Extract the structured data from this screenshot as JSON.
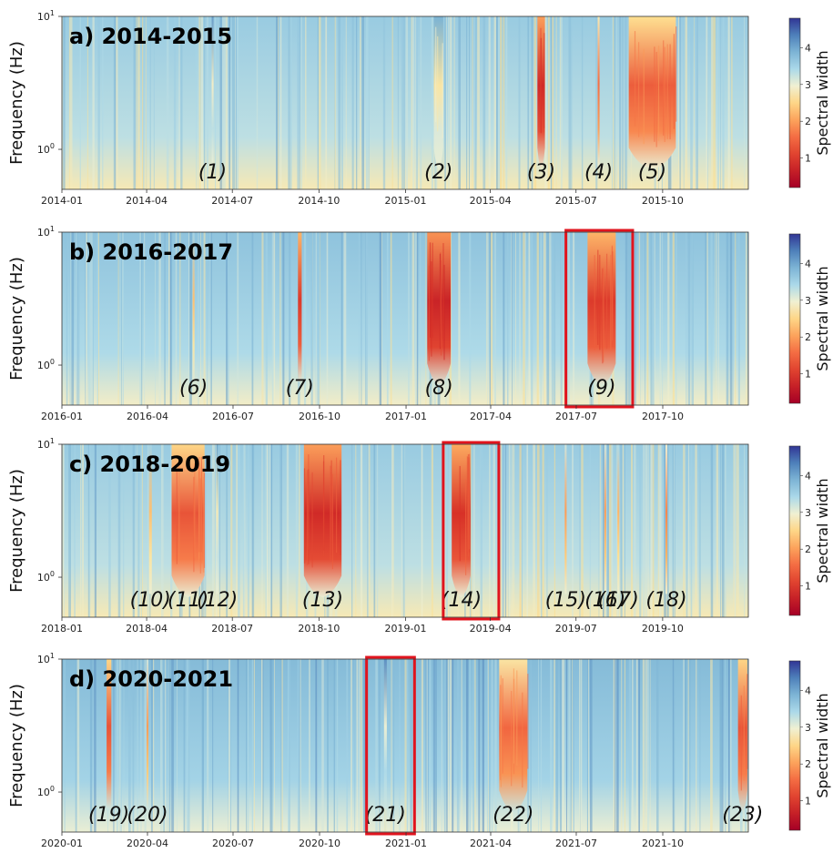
{
  "chart_data": [
    {
      "type": "heatmap",
      "title": "a) 2014-2015",
      "ylabel": "Frequency (Hz)",
      "yscale": "log",
      "ylim": [
        0.5,
        10
      ],
      "y_ticks": [
        {
          "label": "10",
          "sup": "1",
          "value": 10
        },
        {
          "label": "10",
          "sup": "0",
          "value": 1
        }
      ],
      "xlim": [
        "2014-01-01",
        "2015-12-31"
      ],
      "x_ticks": [
        "2014-01",
        "2014-04",
        "2014-07",
        "2014-10",
        "2015-01",
        "2015-04",
        "2015-07",
        "2015-10"
      ],
      "colorbar": {
        "label": "Spectral width",
        "range": [
          0.2,
          4.8
        ],
        "ticks": [
          "1",
          "2",
          "3",
          "4"
        ],
        "colormap": "RdYlBu"
      },
      "base_spectral_width": 3.3,
      "events": [
        {
          "label": "(1)",
          "date": "2014-06-10",
          "duration_days": 2,
          "min_spectral_width": 2.9
        },
        {
          "label": "(2)",
          "date": "2015-02-05",
          "duration_days": 10,
          "min_spectral_width": 2.7
        },
        {
          "label": "(3)",
          "date": "2015-05-25",
          "duration_days": 8,
          "min_spectral_width": 0.8
        },
        {
          "label": "(4)",
          "date": "2015-07-25",
          "duration_days": 2,
          "min_spectral_width": 1.6
        },
        {
          "label": "(5)",
          "date": "2015-09-20",
          "duration_days": 50,
          "min_spectral_width": 1.4
        }
      ],
      "highlight_boxes": []
    },
    {
      "type": "heatmap",
      "title": "b) 2016-2017",
      "ylabel": "Frequency (Hz)",
      "yscale": "log",
      "ylim": [
        0.5,
        10
      ],
      "y_ticks": [
        {
          "label": "10",
          "sup": "1",
          "value": 10
        },
        {
          "label": "10",
          "sup": "0",
          "value": 1
        }
      ],
      "xlim": [
        "2016-01-01",
        "2017-12-31"
      ],
      "x_ticks": [
        "2016-01",
        "2016-04",
        "2016-07",
        "2016-10",
        "2017-01",
        "2017-04",
        "2017-07",
        "2017-10"
      ],
      "colorbar": {
        "label": "Spectral width",
        "range": [
          0.2,
          4.8
        ],
        "ticks": [
          "1",
          "2",
          "3",
          "4"
        ],
        "colormap": "RdYlBu"
      },
      "base_spectral_width": 3.4,
      "events": [
        {
          "label": "(6)",
          "date": "2016-05-20",
          "duration_days": 2,
          "min_spectral_width": 2.3
        },
        {
          "label": "(7)",
          "date": "2016-09-10",
          "duration_days": 4,
          "min_spectral_width": 1.0
        },
        {
          "label": "(8)",
          "date": "2017-02-05",
          "duration_days": 25,
          "min_spectral_width": 0.7
        },
        {
          "label": "(9)",
          "date": "2017-07-28",
          "duration_days": 30,
          "min_spectral_width": 1.0
        }
      ],
      "highlight_boxes": [
        {
          "start": "2017-06-20",
          "end": "2017-08-30"
        }
      ]
    },
    {
      "type": "heatmap",
      "title": "c) 2018-2019",
      "ylabel": "Frequency (Hz)",
      "yscale": "log",
      "ylim": [
        0.5,
        10
      ],
      "y_ticks": [
        {
          "label": "10",
          "sup": "1",
          "value": 10
        },
        {
          "label": "10",
          "sup": "0",
          "value": 1
        }
      ],
      "xlim": [
        "2018-01-01",
        "2019-12-31"
      ],
      "x_ticks": [
        "2018-01",
        "2018-04",
        "2018-07",
        "2018-10",
        "2019-01",
        "2019-04",
        "2019-07",
        "2019-10"
      ],
      "colorbar": {
        "label": "Spectral width",
        "range": [
          0.2,
          4.8
        ],
        "ticks": [
          "1",
          "2",
          "3",
          "4"
        ],
        "colormap": "RdYlBu"
      },
      "base_spectral_width": 3.3,
      "events": [
        {
          "label": "(10)",
          "date": "2018-04-05",
          "duration_days": 3,
          "min_spectral_width": 2.3
        },
        {
          "label": "(11)",
          "date": "2018-05-15",
          "duration_days": 35,
          "min_spectral_width": 1.3
        },
        {
          "label": "(12)",
          "date": "2018-06-15",
          "duration_days": 2,
          "min_spectral_width": 2.8
        },
        {
          "label": "(13)",
          "date": "2018-10-05",
          "duration_days": 40,
          "min_spectral_width": 0.8
        },
        {
          "label": "(14)",
          "date": "2019-03-01",
          "duration_days": 20,
          "min_spectral_width": 0.9
        },
        {
          "label": "(15)",
          "date": "2019-06-20",
          "duration_days": 2,
          "min_spectral_width": 2.0
        },
        {
          "label": "(16)",
          "date": "2019-08-01",
          "duration_days": 2,
          "min_spectral_width": 2.0
        },
        {
          "label": "(17)",
          "date": "2019-08-15",
          "duration_days": 2,
          "min_spectral_width": 2.2
        },
        {
          "label": "(18)",
          "date": "2019-10-05",
          "duration_days": 2,
          "min_spectral_width": 1.8
        }
      ],
      "highlight_boxes": [
        {
          "start": "2019-02-10",
          "end": "2019-04-10"
        }
      ]
    },
    {
      "type": "heatmap",
      "title": "d) 2020-2021",
      "ylabel": "Frequency (Hz)",
      "yscale": "log",
      "ylim": [
        0.5,
        10
      ],
      "y_ticks": [
        {
          "label": "10",
          "sup": "1",
          "value": 10
        },
        {
          "label": "10",
          "sup": "0",
          "value": 1
        }
      ],
      "xlim": [
        "2020-01-01",
        "2021-12-31"
      ],
      "x_ticks": [
        "2020-01",
        "2020-04",
        "2020-07",
        "2020-10",
        "2021-01",
        "2021-04",
        "2021-07",
        "2021-10"
      ],
      "colorbar": {
        "label": "Spectral width",
        "range": [
          0.2,
          4.8
        ],
        "ticks": [
          "1",
          "2",
          "3",
          "4"
        ],
        "colormap": "RdYlBu"
      },
      "base_spectral_width": 3.5,
      "events": [
        {
          "label": "(19)",
          "date": "2020-02-20",
          "duration_days": 5,
          "min_spectral_width": 1.3
        },
        {
          "label": "(20)",
          "date": "2020-04-01",
          "duration_days": 2,
          "min_spectral_width": 2.0
        },
        {
          "label": "(21)",
          "date": "2020-12-10",
          "duration_days": 3,
          "min_spectral_width": 3.0
        },
        {
          "label": "(22)",
          "date": "2021-04-25",
          "duration_days": 30,
          "min_spectral_width": 1.5
        },
        {
          "label": "(23)",
          "date": "2021-12-25",
          "duration_days": 10,
          "min_spectral_width": 1.3
        }
      ],
      "highlight_boxes": [
        {
          "start": "2020-11-20",
          "end": "2021-01-10"
        }
      ]
    }
  ]
}
